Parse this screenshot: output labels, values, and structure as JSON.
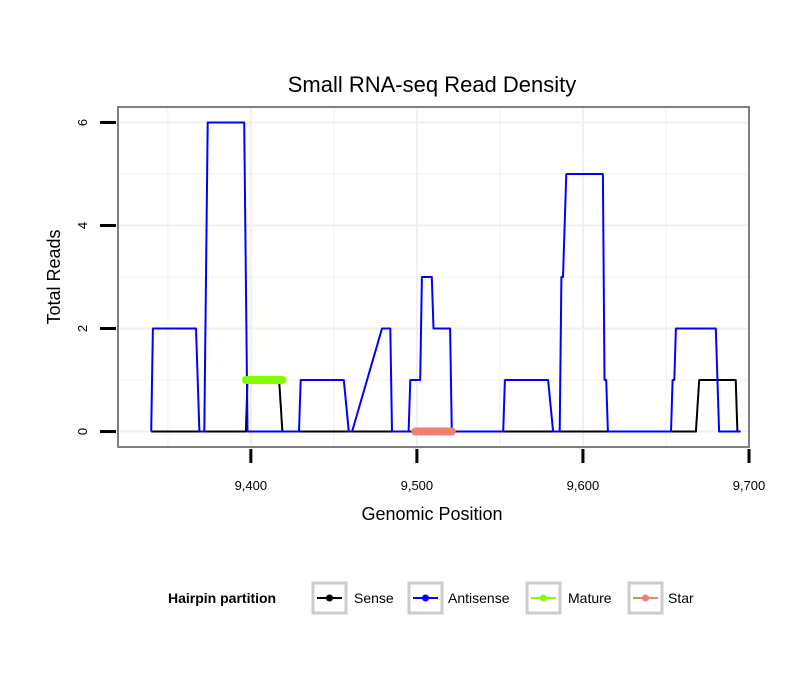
{
  "chart_data": {
    "type": "line",
    "title": "Small RNA-seq Read Density",
    "xlabel": "Genomic Position",
    "ylabel": "Total Reads",
    "xlim": [
      9320,
      9700
    ],
    "ylim": [
      -0.3,
      6.3
    ],
    "x_ticks": [
      9400,
      9500,
      9600,
      9700
    ],
    "x_tick_labels": [
      "9,400",
      "9,500",
      "9,600",
      "9,700"
    ],
    "y_ticks": [
      0,
      2,
      4,
      6
    ],
    "y_tick_labels": [
      "0",
      "2",
      "4",
      "6"
    ],
    "grid": true,
    "legend": {
      "title": "Hairpin partition",
      "position": "bottom",
      "entries": [
        {
          "name": "Sense",
          "color": "#000000"
        },
        {
          "name": "Antisense",
          "color": "#0000ff"
        },
        {
          "name": "Mature",
          "color": "#7fff00"
        },
        {
          "name": "Star",
          "color": "#f08070"
        }
      ]
    },
    "series": [
      {
        "name": "Sense",
        "color": "#000000",
        "x": [
          9340,
          9397,
          9398,
          9417,
          9419,
          9668,
          9670,
          9692,
          9693
        ],
        "y": [
          0,
          0,
          1,
          1,
          0,
          0,
          1,
          1,
          0
        ]
      },
      {
        "name": "Antisense",
        "color": "#0000ff",
        "x": [
          9340,
          9341,
          9367,
          9369,
          9372,
          9374,
          9396,
          9398,
          9429,
          9430,
          9456,
          9459,
          9461,
          9479,
          9484,
          9485,
          9495,
          9496,
          9502,
          9503,
          9509,
          9510,
          9520,
          9521,
          9552,
          9553,
          9579,
          9582,
          9586,
          9587,
          9588,
          9590,
          9592,
          9612,
          9613,
          9614,
          9615,
          9653,
          9654,
          9655,
          9656,
          9657,
          9680,
          9682,
          9695
        ],
        "y": [
          0,
          2,
          2,
          0,
          0,
          6,
          6,
          0,
          0,
          1,
          1,
          0,
          0,
          2,
          2,
          0,
          0,
          1,
          1,
          3,
          3,
          2,
          2,
          0,
          0,
          1,
          1,
          0,
          0,
          3,
          3,
          5,
          5,
          5,
          1,
          1,
          0,
          0,
          1,
          1,
          2,
          2,
          2,
          0,
          0
        ]
      },
      {
        "name": "Mature",
        "color": "#7fff00",
        "x": [
          9397,
          9419
        ],
        "y": [
          1,
          1
        ]
      },
      {
        "name": "Star",
        "color": "#f08070",
        "x": [
          9499,
          9521
        ],
        "y": [
          0,
          0
        ]
      }
    ]
  }
}
